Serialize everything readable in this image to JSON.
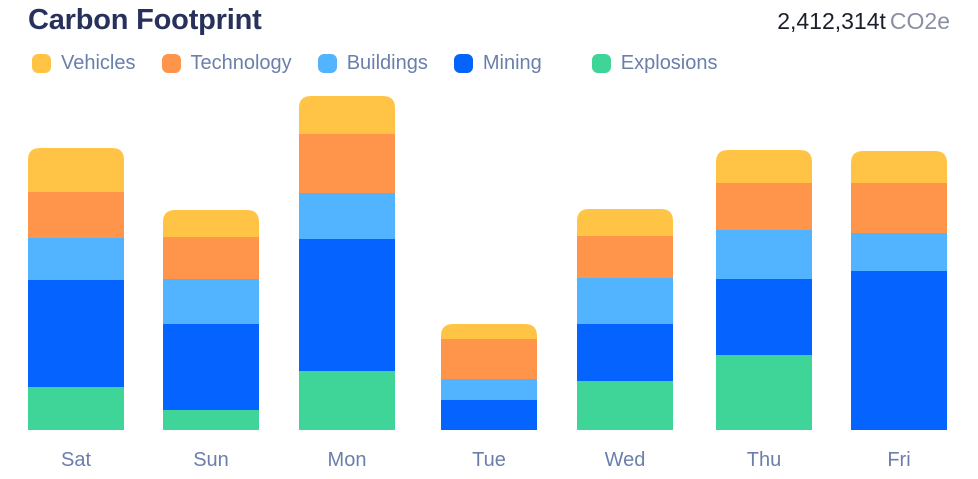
{
  "header": {
    "title": "Carbon Footprint",
    "total_value": "2,412,314t",
    "total_unit": "CO2e"
  },
  "chart_data": {
    "type": "bar",
    "stacked": true,
    "title": "Carbon Footprint",
    "categories": [
      "Sat",
      "Sun",
      "Mon",
      "Tue",
      "Wed",
      "Thu",
      "Fri"
    ],
    "series": [
      {
        "name": "Explosions",
        "color": "#3fd598",
        "values": [
          43,
          20,
          59,
          0,
          49,
          75,
          0
        ]
      },
      {
        "name": "Mining",
        "color": "#0563ff",
        "values": [
          107,
          86,
          132,
          30,
          57,
          76,
          159
        ]
      },
      {
        "name": "Buildings",
        "color": "#52b3ff",
        "values": [
          42,
          45,
          46,
          21,
          46,
          49,
          38
        ]
      },
      {
        "name": "Technology",
        "color": "#ff954b",
        "values": [
          46,
          42,
          59,
          40,
          42,
          47,
          50
        ]
      },
      {
        "name": "Vehicles",
        "color": "#ffc445",
        "values": [
          44,
          27,
          38,
          15,
          27,
          33,
          32
        ]
      }
    ],
    "legend_order": [
      "Vehicles",
      "Technology",
      "Buildings",
      "Mining",
      "Explosions"
    ],
    "legend_position": "top",
    "grid": false,
    "y_axis_visible": false,
    "ylim": [
      0,
      340
    ]
  }
}
